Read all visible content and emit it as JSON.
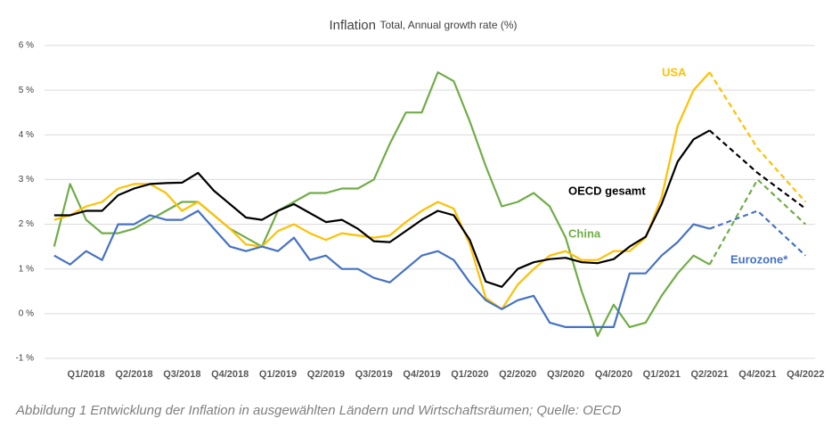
{
  "chart_data": {
    "type": "line",
    "title": "Inflation",
    "subtitle": "Total, Annual growth rate (%)",
    "caption": "Abbildung 1 Entwicklung der Inflation in ausgewählten Ländern und Wirtschaftsräumen; Quelle: OECD",
    "x": [
      0,
      1,
      2,
      3,
      4,
      5,
      6,
      7,
      8,
      9,
      10,
      11,
      12,
      13,
      14,
      15,
      16,
      17,
      18,
      19,
      20,
      21,
      22,
      23,
      24,
      25,
      26,
      27,
      28,
      29,
      30,
      31,
      32,
      33,
      34,
      35,
      36,
      37,
      38,
      39,
      40,
      41,
      44,
      47
    ],
    "xlim": [
      -0.6,
      47.6
    ],
    "xticks": [
      {
        "value": 2,
        "label": "Q1/2018"
      },
      {
        "value": 5,
        "label": "Q2/2018"
      },
      {
        "value": 8,
        "label": "Q3/2018"
      },
      {
        "value": 11,
        "label": "Q4/2018"
      },
      {
        "value": 14,
        "label": "Q1/2019"
      },
      {
        "value": 17,
        "label": "Q2/2019"
      },
      {
        "value": 20,
        "label": "Q3/2019"
      },
      {
        "value": 23,
        "label": "Q4/2019"
      },
      {
        "value": 26,
        "label": "Q1/2020"
      },
      {
        "value": 29,
        "label": "Q2/2020"
      },
      {
        "value": 32,
        "label": "Q3/2020"
      },
      {
        "value": 35,
        "label": "Q4/2020"
      },
      {
        "value": 38,
        "label": "Q1/2021"
      },
      {
        "value": 41,
        "label": "Q2/2021"
      },
      {
        "value": 44,
        "label": "Q4/2021"
      },
      {
        "value": 47,
        "label": "Q4/2022"
      }
    ],
    "ylim": [
      -1,
      6
    ],
    "yticks": [
      {
        "value": -1,
        "label": "-1 %"
      },
      {
        "value": 0,
        "label": "0 %"
      },
      {
        "value": 1,
        "label": "1 %"
      },
      {
        "value": 2,
        "label": "2 %"
      },
      {
        "value": 3,
        "label": "3 %"
      },
      {
        "value": 4,
        "label": "4 %"
      },
      {
        "value": 5,
        "label": "5 %"
      },
      {
        "value": 6,
        "label": "6 %"
      }
    ],
    "grid": true,
    "dashed_from_x": 41,
    "series": [
      {
        "name": "China",
        "color": "#70ad47",
        "values": [
          1.5,
          2.9,
          2.1,
          1.8,
          1.8,
          1.9,
          2.1,
          2.3,
          2.5,
          2.5,
          2.2,
          1.9,
          1.7,
          1.5,
          2.3,
          2.5,
          2.7,
          2.7,
          2.8,
          2.8,
          3.0,
          3.8,
          4.5,
          4.5,
          5.4,
          5.2,
          4.3,
          3.3,
          2.4,
          2.5,
          2.7,
          2.4,
          1.7,
          0.5,
          -0.5,
          0.2,
          -0.3,
          -0.2,
          0.4,
          0.9,
          1.3,
          1.1,
          3.0,
          2.0
        ]
      },
      {
        "name": "USA",
        "color": "#ffc000",
        "values": [
          2.1,
          2.2,
          2.4,
          2.5,
          2.8,
          2.9,
          2.9,
          2.7,
          2.3,
          2.5,
          2.2,
          1.9,
          1.55,
          1.5,
          1.85,
          2.0,
          1.8,
          1.65,
          1.8,
          1.75,
          1.7,
          1.75,
          2.05,
          2.3,
          2.5,
          2.35,
          1.55,
          0.35,
          0.1,
          0.65,
          1.0,
          1.3,
          1.4,
          1.2,
          1.2,
          1.4,
          1.4,
          1.7,
          2.6,
          4.2,
          5.0,
          5.4,
          3.7,
          2.5
        ]
      },
      {
        "name": "OECD gesamt",
        "color": "#000000",
        "values": [
          2.2,
          2.2,
          2.3,
          2.3,
          2.65,
          2.8,
          2.9,
          2.92,
          2.93,
          3.15,
          2.75,
          2.45,
          2.15,
          2.1,
          2.3,
          2.45,
          2.25,
          2.05,
          2.1,
          1.9,
          1.62,
          1.6,
          1.85,
          2.1,
          2.3,
          2.2,
          1.65,
          0.72,
          0.6,
          1.0,
          1.15,
          1.22,
          1.25,
          1.15,
          1.13,
          1.22,
          1.5,
          1.72,
          2.45,
          3.4,
          3.9,
          4.1,
          3.15,
          2.35
        ]
      },
      {
        "name": "Eurozone*",
        "color": "#4472c4",
        "values": [
          1.3,
          1.1,
          1.4,
          1.2,
          2.0,
          2.0,
          2.2,
          2.1,
          2.1,
          2.3,
          1.9,
          1.5,
          1.4,
          1.5,
          1.4,
          1.7,
          1.2,
          1.3,
          1.0,
          1.0,
          0.8,
          0.7,
          1.0,
          1.3,
          1.4,
          1.2,
          0.7,
          0.3,
          0.1,
          0.3,
          0.4,
          -0.2,
          -0.3,
          -0.3,
          -0.3,
          -0.3,
          0.9,
          0.9,
          1.3,
          1.6,
          2.0,
          1.9,
          2.3,
          1.3
        ]
      }
    ]
  }
}
